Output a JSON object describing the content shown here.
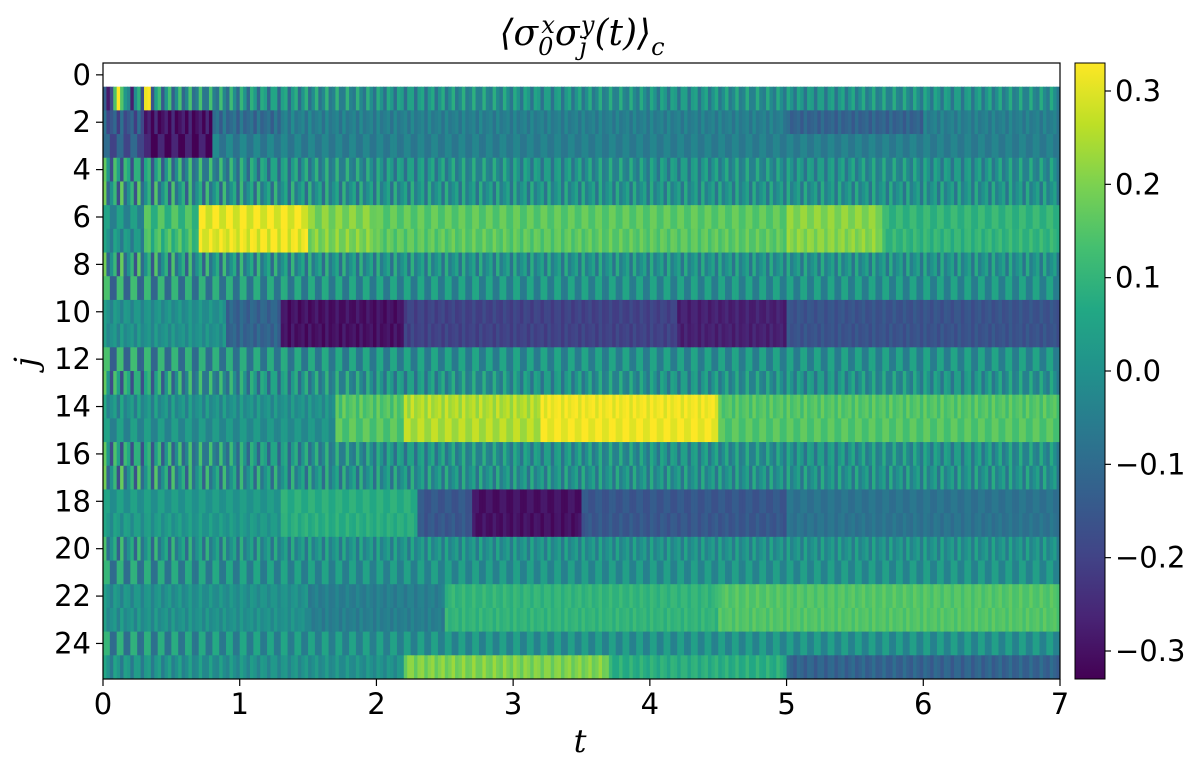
{
  "chart_data": {
    "type": "heatmap",
    "title_parts": [
      "⟨σ",
      "0",
      "x",
      "σ",
      "j",
      "y",
      "(t)⟩",
      "c"
    ],
    "xlabel": "t",
    "ylabel": "j",
    "xlim": [
      0,
      7
    ],
    "ylim": [
      -0.5,
      25.5
    ],
    "x_ticks": [
      "0",
      "1",
      "2",
      "3",
      "4",
      "5",
      "6",
      "7"
    ],
    "y_ticks": [
      "0",
      "2",
      "4",
      "6",
      "8",
      "10",
      "12",
      "14",
      "16",
      "18",
      "20",
      "22",
      "24"
    ],
    "colorbar": {
      "range": [
        -0.33,
        0.33
      ],
      "ticks": [
        "0.3",
        "0.2",
        "0.1",
        "0.0",
        "−0.1",
        "−0.2",
        "−0.3"
      ],
      "colormap": "viridis"
    },
    "rows": [
      {
        "j": 0,
        "base": 0.0,
        "segments": [
          [
            0,
            7,
            0.0
          ]
        ],
        "osc": 0.0
      },
      {
        "j": 1,
        "base": 0.0,
        "segments": [
          [
            0,
            0.05,
            -0.3
          ],
          [
            0.1,
            0.15,
            0.33
          ],
          [
            0.15,
            0.25,
            -0.1
          ],
          [
            0.3,
            0.35,
            0.25
          ],
          [
            0.35,
            7,
            0.0
          ]
        ],
        "osc": 0.08
      },
      {
        "j": 2,
        "base": -0.1,
        "segments": [
          [
            0,
            0.3,
            -0.15
          ],
          [
            0.3,
            0.8,
            -0.3
          ],
          [
            0.8,
            1.3,
            -0.1
          ],
          [
            1.3,
            5,
            -0.05
          ],
          [
            5,
            6,
            -0.12
          ],
          [
            6,
            7,
            -0.05
          ]
        ],
        "osc": 0.03
      },
      {
        "j": 3,
        "base": -0.05,
        "segments": [
          [
            0,
            0.3,
            -0.15
          ],
          [
            0.3,
            0.8,
            -0.3
          ],
          [
            0.8,
            7,
            -0.05
          ]
        ],
        "osc": 0.03
      },
      {
        "j": 4,
        "base": 0.0,
        "segments": [
          [
            0,
            7,
            0.0
          ]
        ],
        "osc": 0.08
      },
      {
        "j": 5,
        "base": 0.0,
        "segments": [
          [
            0,
            7,
            0.0
          ]
        ],
        "osc": 0.08
      },
      {
        "j": 6,
        "base": 0.15,
        "segments": [
          [
            0,
            0.3,
            0.0
          ],
          [
            0.3,
            0.7,
            0.12
          ],
          [
            0.7,
            1.5,
            0.31
          ],
          [
            1.5,
            2.0,
            0.2
          ],
          [
            2.0,
            5.0,
            0.16
          ],
          [
            5.0,
            5.7,
            0.21
          ],
          [
            5.7,
            7,
            0.1
          ]
        ],
        "osc": 0.03
      },
      {
        "j": 7,
        "base": 0.15,
        "segments": [
          [
            0,
            0.3,
            0.0
          ],
          [
            0.3,
            0.7,
            0.12
          ],
          [
            0.7,
            1.5,
            0.31
          ],
          [
            1.5,
            2.0,
            0.2
          ],
          [
            2.0,
            5.0,
            0.16
          ],
          [
            5.0,
            5.7,
            0.21
          ],
          [
            5.7,
            7,
            0.1
          ]
        ],
        "osc": 0.03
      },
      {
        "j": 8,
        "base": 0.0,
        "segments": [
          [
            0,
            7,
            0.0
          ]
        ],
        "osc": 0.08
      },
      {
        "j": 9,
        "base": 0.0,
        "segments": [
          [
            0,
            7,
            0.0
          ]
        ],
        "osc": 0.08
      },
      {
        "j": 10,
        "base": -0.15,
        "segments": [
          [
            0,
            0.9,
            0.0
          ],
          [
            0.9,
            1.3,
            -0.12
          ],
          [
            1.3,
            2.2,
            -0.3
          ],
          [
            2.2,
            4.2,
            -0.2
          ],
          [
            4.2,
            5.0,
            -0.27
          ],
          [
            5.0,
            7,
            -0.16
          ]
        ],
        "osc": 0.02
      },
      {
        "j": 11,
        "base": -0.15,
        "segments": [
          [
            0,
            0.9,
            0.0
          ],
          [
            0.9,
            1.3,
            -0.12
          ],
          [
            1.3,
            2.2,
            -0.3
          ],
          [
            2.2,
            4.2,
            -0.2
          ],
          [
            4.2,
            5.0,
            -0.27
          ],
          [
            5.0,
            7,
            -0.16
          ]
        ],
        "osc": 0.02
      },
      {
        "j": 12,
        "base": 0.0,
        "segments": [
          [
            0,
            7,
            0.0
          ]
        ],
        "osc": 0.08
      },
      {
        "j": 13,
        "base": 0.0,
        "segments": [
          [
            0,
            7,
            0.0
          ]
        ],
        "osc": 0.08
      },
      {
        "j": 14,
        "base": 0.15,
        "segments": [
          [
            0,
            1.7,
            0.0
          ],
          [
            1.7,
            2.2,
            0.15
          ],
          [
            2.2,
            3.2,
            0.25
          ],
          [
            3.2,
            4.5,
            0.32
          ],
          [
            4.5,
            7,
            0.15
          ]
        ],
        "osc": 0.03
      },
      {
        "j": 15,
        "base": 0.15,
        "segments": [
          [
            0,
            1.7,
            0.0
          ],
          [
            1.7,
            2.2,
            0.15
          ],
          [
            2.2,
            3.2,
            0.25
          ],
          [
            3.2,
            4.5,
            0.32
          ],
          [
            4.5,
            7,
            0.15
          ]
        ],
        "osc": 0.03
      },
      {
        "j": 16,
        "base": 0.0,
        "segments": [
          [
            0,
            7,
            0.0
          ]
        ],
        "osc": 0.08
      },
      {
        "j": 17,
        "base": 0.0,
        "segments": [
          [
            0,
            7,
            0.0
          ]
        ],
        "osc": 0.08
      },
      {
        "j": 18,
        "base": -0.15,
        "segments": [
          [
            0,
            1.3,
            0.02
          ],
          [
            1.3,
            2.3,
            0.08
          ],
          [
            2.3,
            2.7,
            -0.15
          ],
          [
            2.7,
            3.5,
            -0.3
          ],
          [
            3.5,
            5.0,
            -0.15
          ],
          [
            5.0,
            7,
            -0.08
          ]
        ],
        "osc": 0.02
      },
      {
        "j": 19,
        "base": -0.15,
        "segments": [
          [
            0,
            1.3,
            0.02
          ],
          [
            1.3,
            2.3,
            0.08
          ],
          [
            2.3,
            2.7,
            -0.15
          ],
          [
            2.7,
            3.5,
            -0.3
          ],
          [
            3.5,
            5.0,
            -0.15
          ],
          [
            5.0,
            7,
            -0.08
          ]
        ],
        "osc": 0.02
      },
      {
        "j": 20,
        "base": 0.0,
        "segments": [
          [
            0,
            7,
            0.0
          ]
        ],
        "osc": 0.06
      },
      {
        "j": 21,
        "base": 0.0,
        "segments": [
          [
            0,
            7,
            0.0
          ]
        ],
        "osc": 0.06
      },
      {
        "j": 22,
        "base": 0.05,
        "segments": [
          [
            0,
            1.5,
            0.0
          ],
          [
            1.5,
            2.5,
            -0.05
          ],
          [
            2.5,
            4.5,
            0.1
          ],
          [
            4.5,
            7,
            0.15
          ]
        ],
        "osc": 0.02
      },
      {
        "j": 23,
        "base": 0.05,
        "segments": [
          [
            0,
            1.5,
            0.0
          ],
          [
            1.5,
            2.5,
            -0.05
          ],
          [
            2.5,
            4.5,
            0.1
          ],
          [
            4.5,
            7,
            0.15
          ]
        ],
        "osc": 0.02
      },
      {
        "j": 24,
        "base": 0.0,
        "segments": [
          [
            0,
            7,
            0.0
          ]
        ],
        "osc": 0.06
      },
      {
        "j": 25,
        "base": 0.1,
        "segments": [
          [
            0,
            2.2,
            0.0
          ],
          [
            2.2,
            3.7,
            0.2
          ],
          [
            3.7,
            5.0,
            0.08
          ],
          [
            5.0,
            7,
            -0.12
          ]
        ],
        "osc": 0.03
      }
    ]
  }
}
